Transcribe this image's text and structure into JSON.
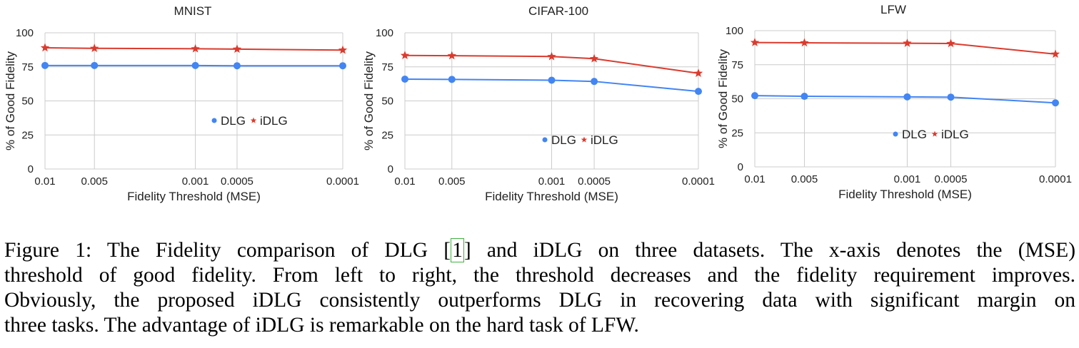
{
  "chart_data": [
    {
      "type": "line",
      "title": "MNIST",
      "categories": [
        "0.01",
        "0.005",
        "0.001",
        "0.0005",
        "0.0001"
      ],
      "xlabel": "Fidelity Threshold (MSE)",
      "ylabel": "% of Good Fidelity",
      "ylim": [
        0,
        100
      ],
      "yticks": [
        "0",
        "25",
        "50",
        "75",
        "100"
      ],
      "legend_position": "center-right",
      "series": [
        {
          "name": "DLG",
          "color": "#4285f4",
          "marker": "circle",
          "values": [
            76,
            76,
            76,
            75.8,
            75.8
          ]
        },
        {
          "name": "iDLG",
          "color": "#db3b2e",
          "marker": "star",
          "values": [
            89,
            88.6,
            88.3,
            88,
            87.3
          ]
        }
      ]
    },
    {
      "type": "line",
      "title": "CIFAR-100",
      "categories": [
        "0.01",
        "0.005",
        "0.001",
        "0.0005",
        "0.0001"
      ],
      "xlabel": "Fidelity Threshold (MSE)",
      "ylabel": "% of Good Fidelity",
      "ylim": [
        0,
        100
      ],
      "yticks": [
        "0",
        "25",
        "50",
        "75",
        "100"
      ],
      "legend_position": "center-right",
      "series": [
        {
          "name": "DLG",
          "color": "#4285f4",
          "marker": "circle",
          "values": [
            66,
            65.8,
            65.2,
            64.3,
            57
          ]
        },
        {
          "name": "iDLG",
          "color": "#db3b2e",
          "marker": "star",
          "values": [
            83.4,
            83.2,
            82.6,
            81,
            70.3
          ]
        }
      ]
    },
    {
      "type": "line",
      "title": "LFW",
      "categories": [
        "0.01",
        "0.005",
        "0.001",
        "0.0005",
        "0.0001"
      ],
      "xlabel": "Fidelity Threshold (MSE)",
      "ylabel": "% of Good Fidelity",
      "ylim": [
        0,
        100
      ],
      "yticks": [
        "0",
        "25",
        "50",
        "75",
        "100"
      ],
      "legend_position": "center-right",
      "series": [
        {
          "name": "DLG",
          "color": "#4285f4",
          "marker": "circle",
          "values": [
            52.3,
            51.8,
            51.4,
            51.2,
            47
          ]
        },
        {
          "name": "iDLG",
          "color": "#db3b2e",
          "marker": "star",
          "values": [
            91.3,
            91.1,
            90.8,
            90.6,
            82.8
          ]
        }
      ]
    }
  ],
  "caption": {
    "label": "Figure 1:",
    "text_before_ref": "The Fidelity comparison of DLG",
    "ref": "1",
    "text_after_ref": "and iDLG on three datasets. The x-axis denotes the (MSE)",
    "line2": "threshold of good fidelity. From left to right, the threshold decreases and the fidelity requirement improves.",
    "line3": "Obviously, the proposed iDLG consistently outperforms DLG in recovering data with significant margin on",
    "line4": "three tasks. The advantage of iDLG is remarkable on the hard task of LFW."
  }
}
